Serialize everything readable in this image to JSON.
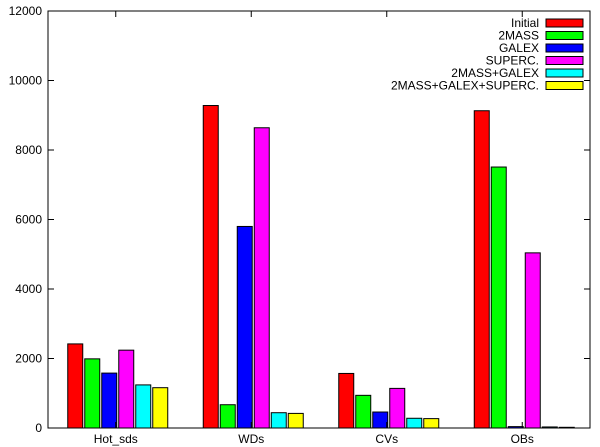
{
  "chart_data": {
    "type": "bar",
    "categories": [
      "Hot_sds",
      "WDs",
      "CVs",
      "OBs"
    ],
    "series": [
      {
        "name": "Initial",
        "color": "#ff0000",
        "values": [
          2420,
          9280,
          1570,
          9130
        ]
      },
      {
        "name": "2MASS",
        "color": "#00ff00",
        "values": [
          1990,
          670,
          940,
          7510
        ]
      },
      {
        "name": "GALEX",
        "color": "#0000ff",
        "values": [
          1580,
          5800,
          460,
          40
        ]
      },
      {
        "name": "SUPERC.",
        "color": "#ff00ff",
        "values": [
          2240,
          8640,
          1140,
          5040
        ]
      },
      {
        "name": "2MASS+GALEX",
        "color": "#00ffff",
        "values": [
          1240,
          440,
          280,
          30
        ]
      },
      {
        "name": "2MASS+GALEX+SUPERC.",
        "color": "#ffff00",
        "values": [
          1160,
          420,
          270,
          20
        ]
      }
    ],
    "yticks": [
      "0",
      "2000",
      "4000",
      "6000",
      "8000",
      "10000",
      "12000"
    ],
    "ylim": [
      0,
      12000
    ],
    "title": "",
    "xlabel": "",
    "ylabel": "",
    "grid": false,
    "legend_position": "top-right"
  }
}
